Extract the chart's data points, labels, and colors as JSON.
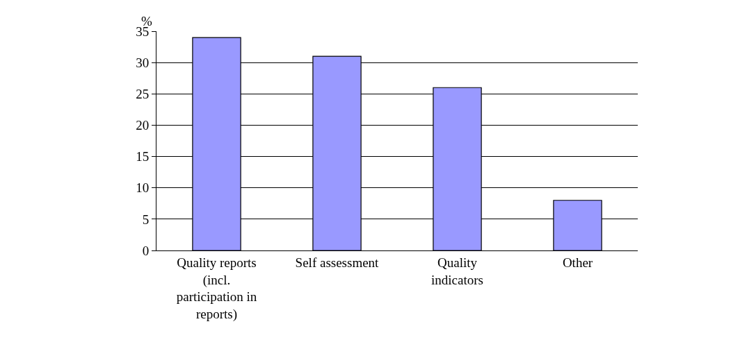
{
  "chart_data": {
    "type": "bar",
    "ylabel": "%",
    "categories": [
      "Quality reports (incl. participation in reports)",
      "Self assessment",
      "Quality indicators",
      "Other"
    ],
    "values": [
      34,
      31,
      26,
      8
    ],
    "color": "#9999ff",
    "ylim": [
      0,
      35
    ],
    "yticks": [
      0,
      5,
      10,
      15,
      20,
      25,
      30,
      35
    ],
    "grid": "y"
  }
}
